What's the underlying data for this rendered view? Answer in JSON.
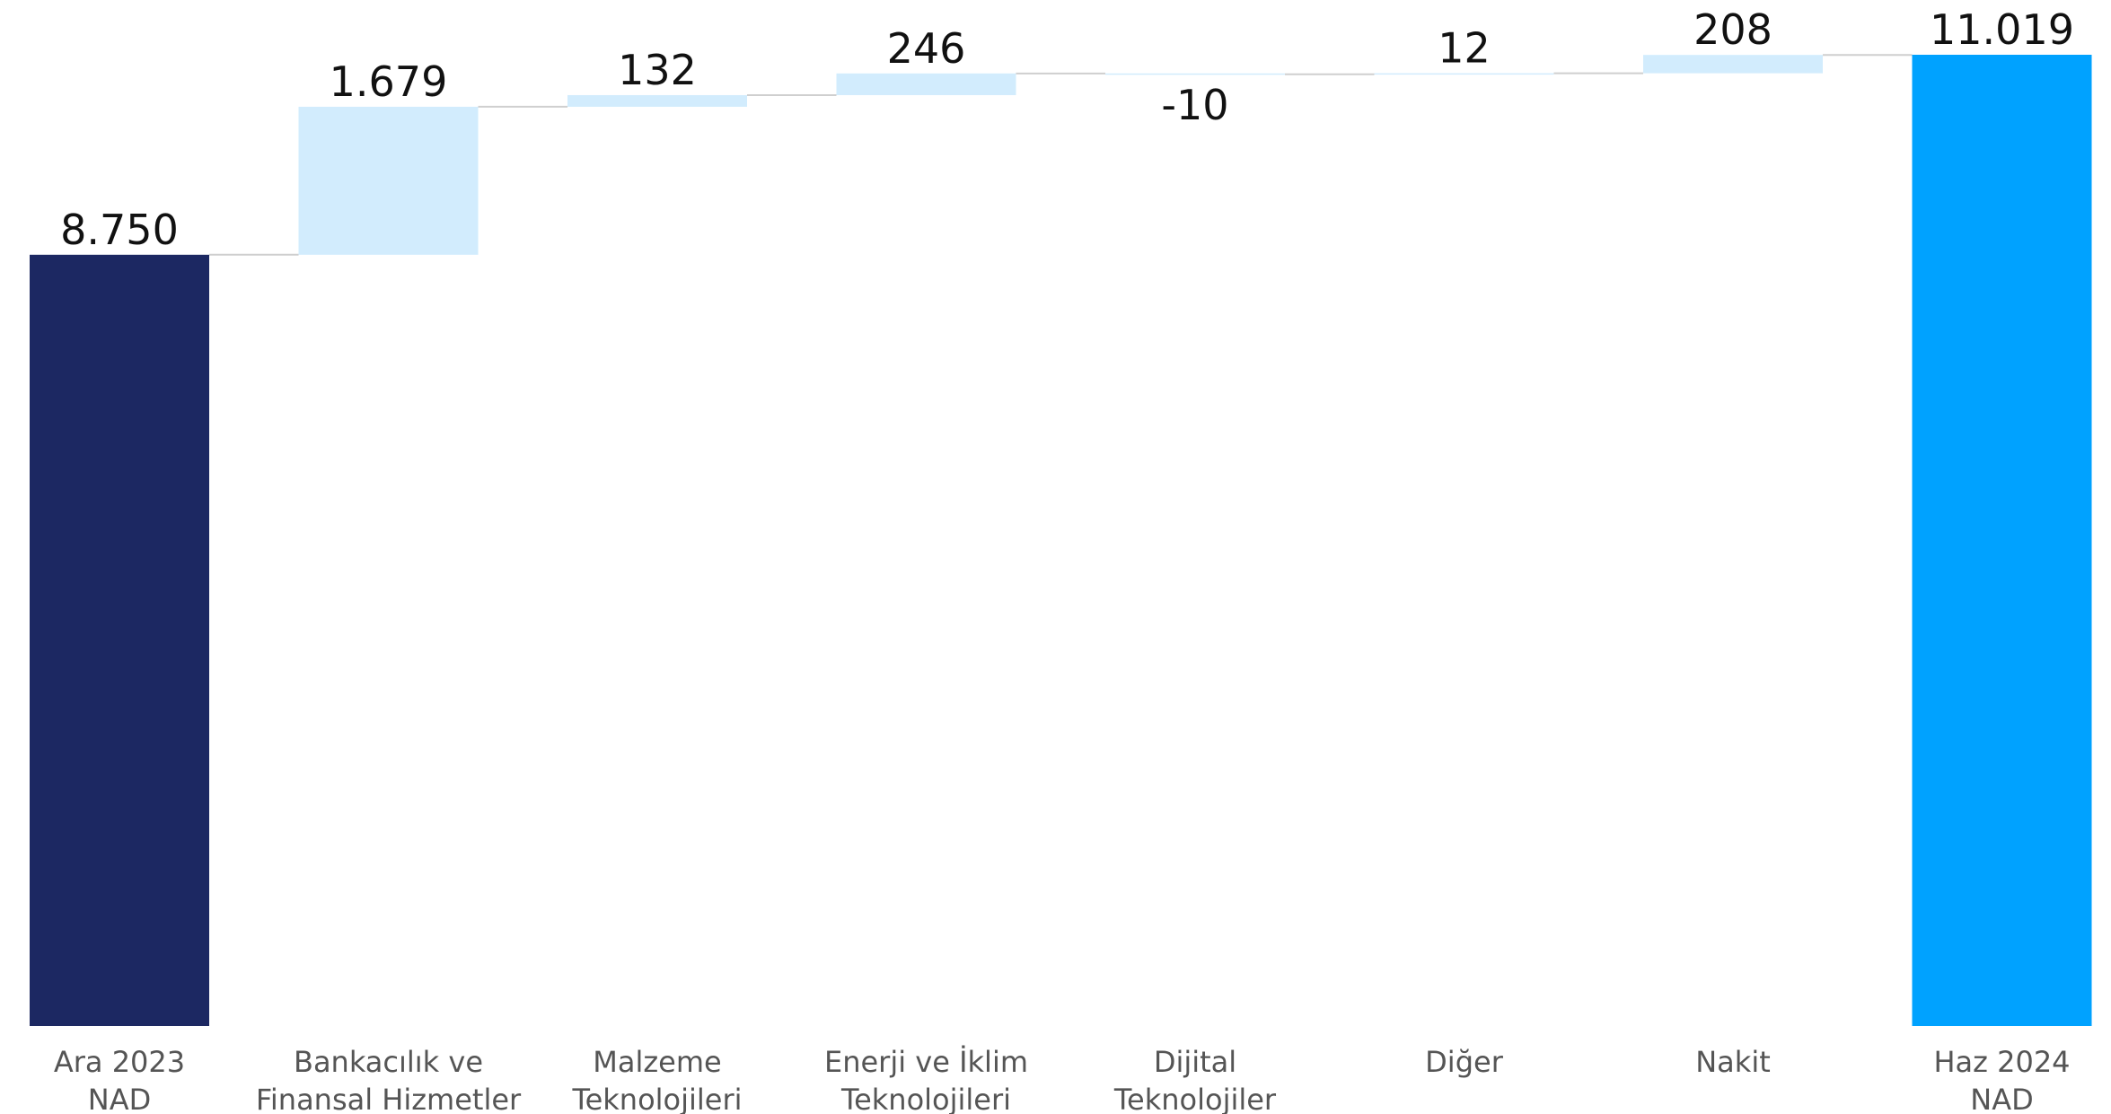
{
  "chart_data": {
    "type": "bar",
    "subtype": "waterfall",
    "categories": [
      [
        "Ara 2023",
        "NAD"
      ],
      [
        "Bankacılık ve",
        "Finansal Hizmetler"
      ],
      [
        "Malzeme",
        "Teknolojileri"
      ],
      [
        "Enerji ve İklim",
        "Teknolojileri"
      ],
      [
        "Dijital",
        "Teknolojiler"
      ],
      [
        "Diğer"
      ],
      [
        "Nakit"
      ],
      [
        "Haz 2024",
        "NAD"
      ]
    ],
    "values": [
      8750,
      1679,
      132,
      246,
      -10,
      12,
      208,
      11019
    ],
    "value_labels": [
      "8.750",
      "1.679",
      "132",
      "246",
      "-10",
      "12",
      "208",
      "11.019"
    ],
    "bar_kinds": [
      "total",
      "delta",
      "delta",
      "delta",
      "delta",
      "delta",
      "delta",
      "total"
    ],
    "ylim": [
      0,
      11019
    ],
    "grid": false,
    "colors": {
      "start_total": "#1c2862",
      "end_total": "#00a2ff",
      "increase": "#d2ecfd",
      "decrease": "#d2ecfd",
      "connector": "#cfcfcf"
    }
  }
}
